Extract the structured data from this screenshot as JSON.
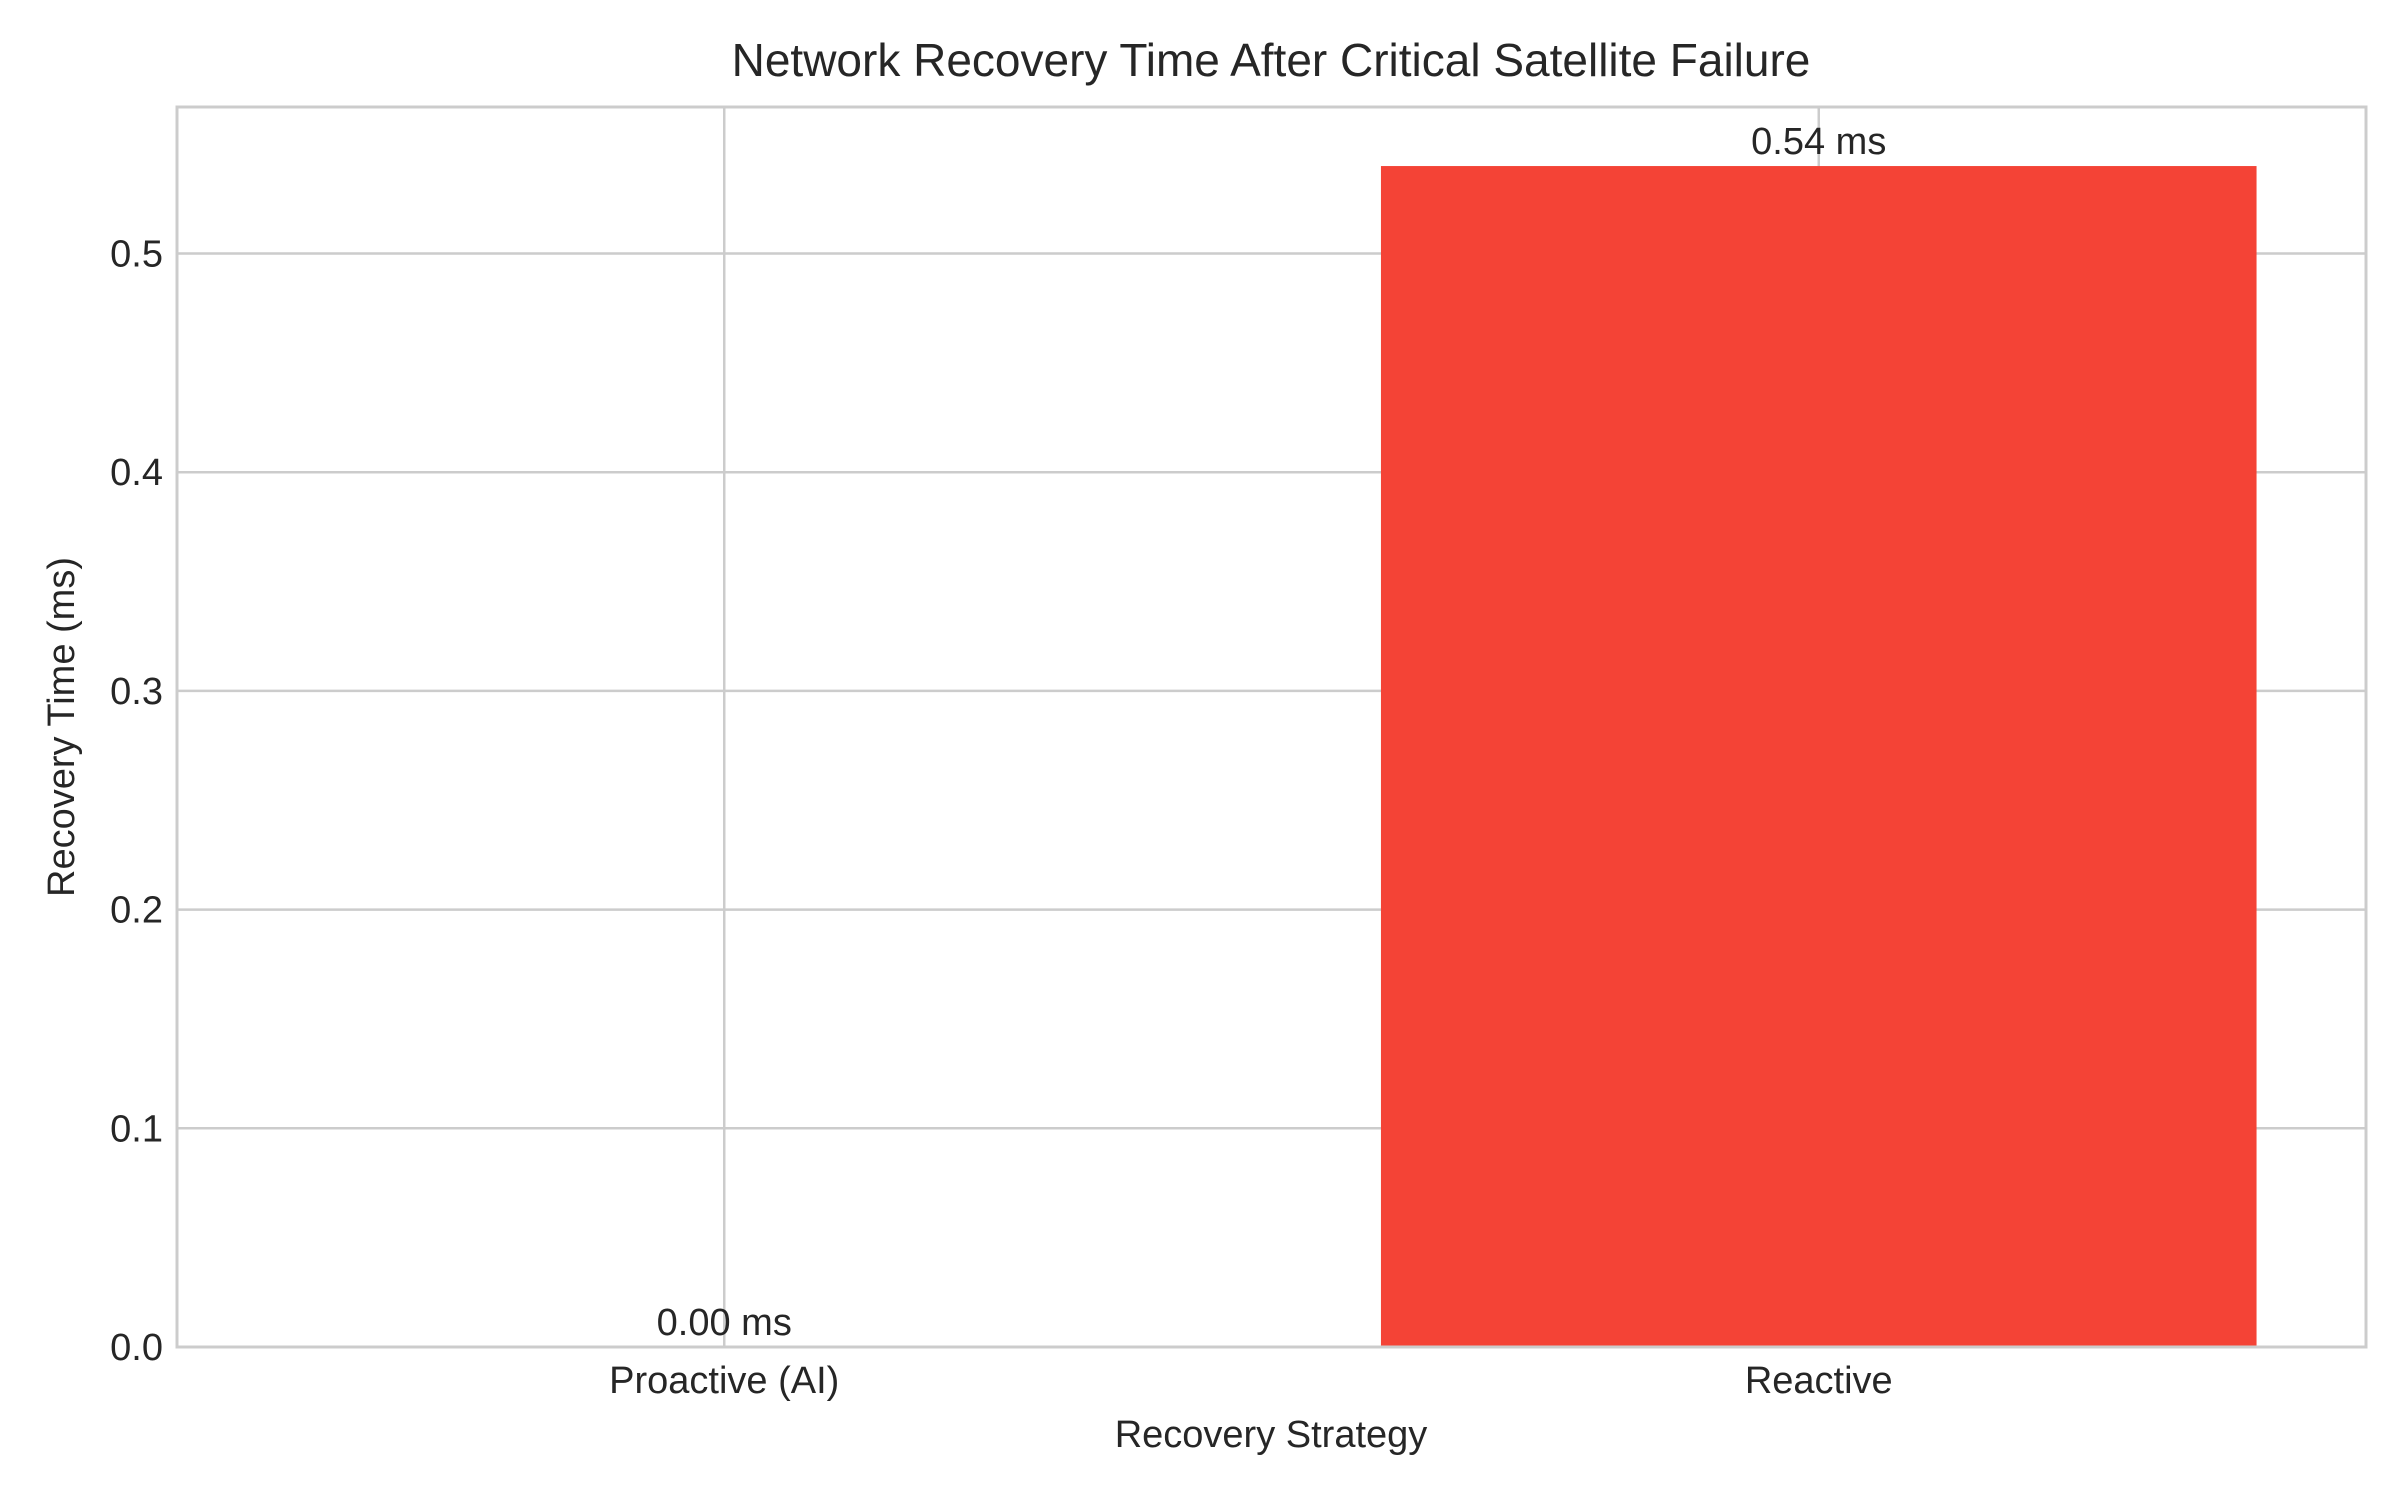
{
  "chart_data": {
    "type": "bar",
    "title": "Network Recovery Time After Critical Satellite Failure",
    "xlabel": "Recovery Strategy",
    "ylabel": "Recovery Time (ms)",
    "categories": [
      "Proactive (AI)",
      "Reactive"
    ],
    "values": [
      0.0,
      0.54
    ],
    "value_labels": [
      "0.00 ms",
      "0.54 ms"
    ],
    "ylim": [
      0,
      0.567
    ],
    "yticks": [
      0.0,
      0.1,
      0.2,
      0.3,
      0.4,
      0.5
    ],
    "ytick_labels": [
      "0.0",
      "0.1",
      "0.2",
      "0.3",
      "0.4",
      "0.5"
    ],
    "grid": true,
    "bar_colors": [
      "#4CAF50",
      "#F44336"
    ],
    "grid_color": "#cccccc",
    "spine_color": "#cccccc"
  }
}
